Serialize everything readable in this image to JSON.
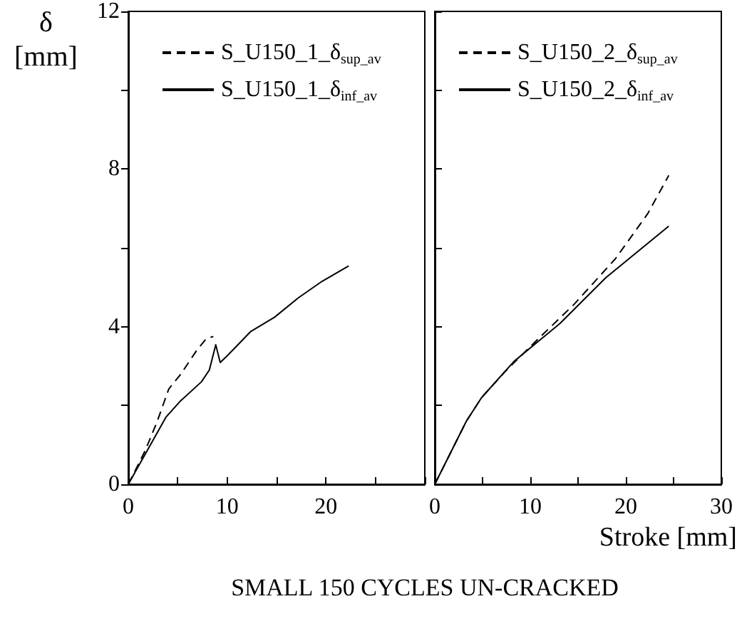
{
  "chart_data": [
    {
      "type": "line",
      "ylabel": "δ\n[mm]",
      "annotations": [
        "SMALL 150 CYCLES UN-CRACKED"
      ],
      "legend": "top left",
      "marker": "none",
      "grid": false,
      "xlim": [
        0,
        30
      ],
      "xticks": [
        0,
        {
          "value": 5,
          "label": null
        },
        10,
        {
          "value": 15,
          "label": null
        },
        20,
        {
          "value": 25,
          "label": null
        },
        {
          "value": 30,
          "label": null
        }
      ],
      "ylim": [
        0,
        12
      ],
      "yticks": [
        0,
        {
          "value": 2,
          "label": null
        },
        4,
        {
          "value": 6,
          "label": null
        },
        8,
        {
          "value": 10,
          "label": null
        },
        12
      ],
      "series": [
        {
          "name": "S_U150_1_δ$_{sup_av}$",
          "color": "#000000",
          "line_style": "dashed",
          "x": [
            0,
            1.7,
            2.9,
            4.1,
            5.3,
            6.9,
            7.9,
            8.6
          ],
          "values": [
            0,
            0.85,
            1.58,
            2.42,
            2.79,
            3.39,
            3.7,
            3.75
          ]
        },
        {
          "name": "S_U150_1_δ$_{inf_av}$",
          "color": "#000000",
          "line_style": "solid",
          "x": [
            0,
            1.9,
            3.8,
            5.3,
            7.4,
            8.2,
            8.85,
            9.3,
            10.05,
            12.4,
            14.8,
            17.2,
            19.6,
            22.3
          ],
          "values": [
            0,
            0.85,
            1.7,
            2.12,
            2.6,
            2.9,
            3.54,
            3.09,
            3.27,
            3.88,
            4.24,
            4.73,
            5.15,
            5.54
          ]
        }
      ]
    },
    {
      "type": "line",
      "xlabel": "Stroke [mm]",
      "legend": "top left",
      "marker": "none",
      "grid": false,
      "tick_labels": "x",
      "xlim": [
        0,
        30
      ],
      "xticks": [
        0,
        {
          "value": 5,
          "label": null
        },
        10,
        {
          "value": 15,
          "label": null
        },
        20,
        {
          "value": 25,
          "label": null
        },
        30
      ],
      "ylim": [
        0,
        12
      ],
      "yticks": [
        0,
        {
          "value": 2,
          "label": null
        },
        {
          "value": 4,
          "label": null
        },
        {
          "value": 6,
          "label": null
        },
        {
          "value": 8,
          "label": null
        },
        {
          "value": 10,
          "label": null
        },
        {
          "value": 12,
          "label": null
        }
      ],
      "series": [
        {
          "name": "S_U150_2_δ$_{sup_av}$",
          "color": "#000000",
          "line_style": "dashed",
          "x": [
            0,
            3.3,
            4.9,
            7.4,
            10.7,
            14.6,
            18.9,
            22.3,
            24.5
          ],
          "values": [
            0,
            1.6,
            2.2,
            2.87,
            3.66,
            4.57,
            5.72,
            6.87,
            7.84
          ]
        },
        {
          "name": "S_U150_2_δ$_{inf_av}$",
          "color": "#000000",
          "line_style": "solid",
          "x": [
            0,
            3.3,
            4.9,
            8.3,
            13.1,
            17.9,
            24.5
          ],
          "values": [
            0,
            1.6,
            2.2,
            3.12,
            4.08,
            5.24,
            6.55
          ]
        }
      ]
    }
  ]
}
